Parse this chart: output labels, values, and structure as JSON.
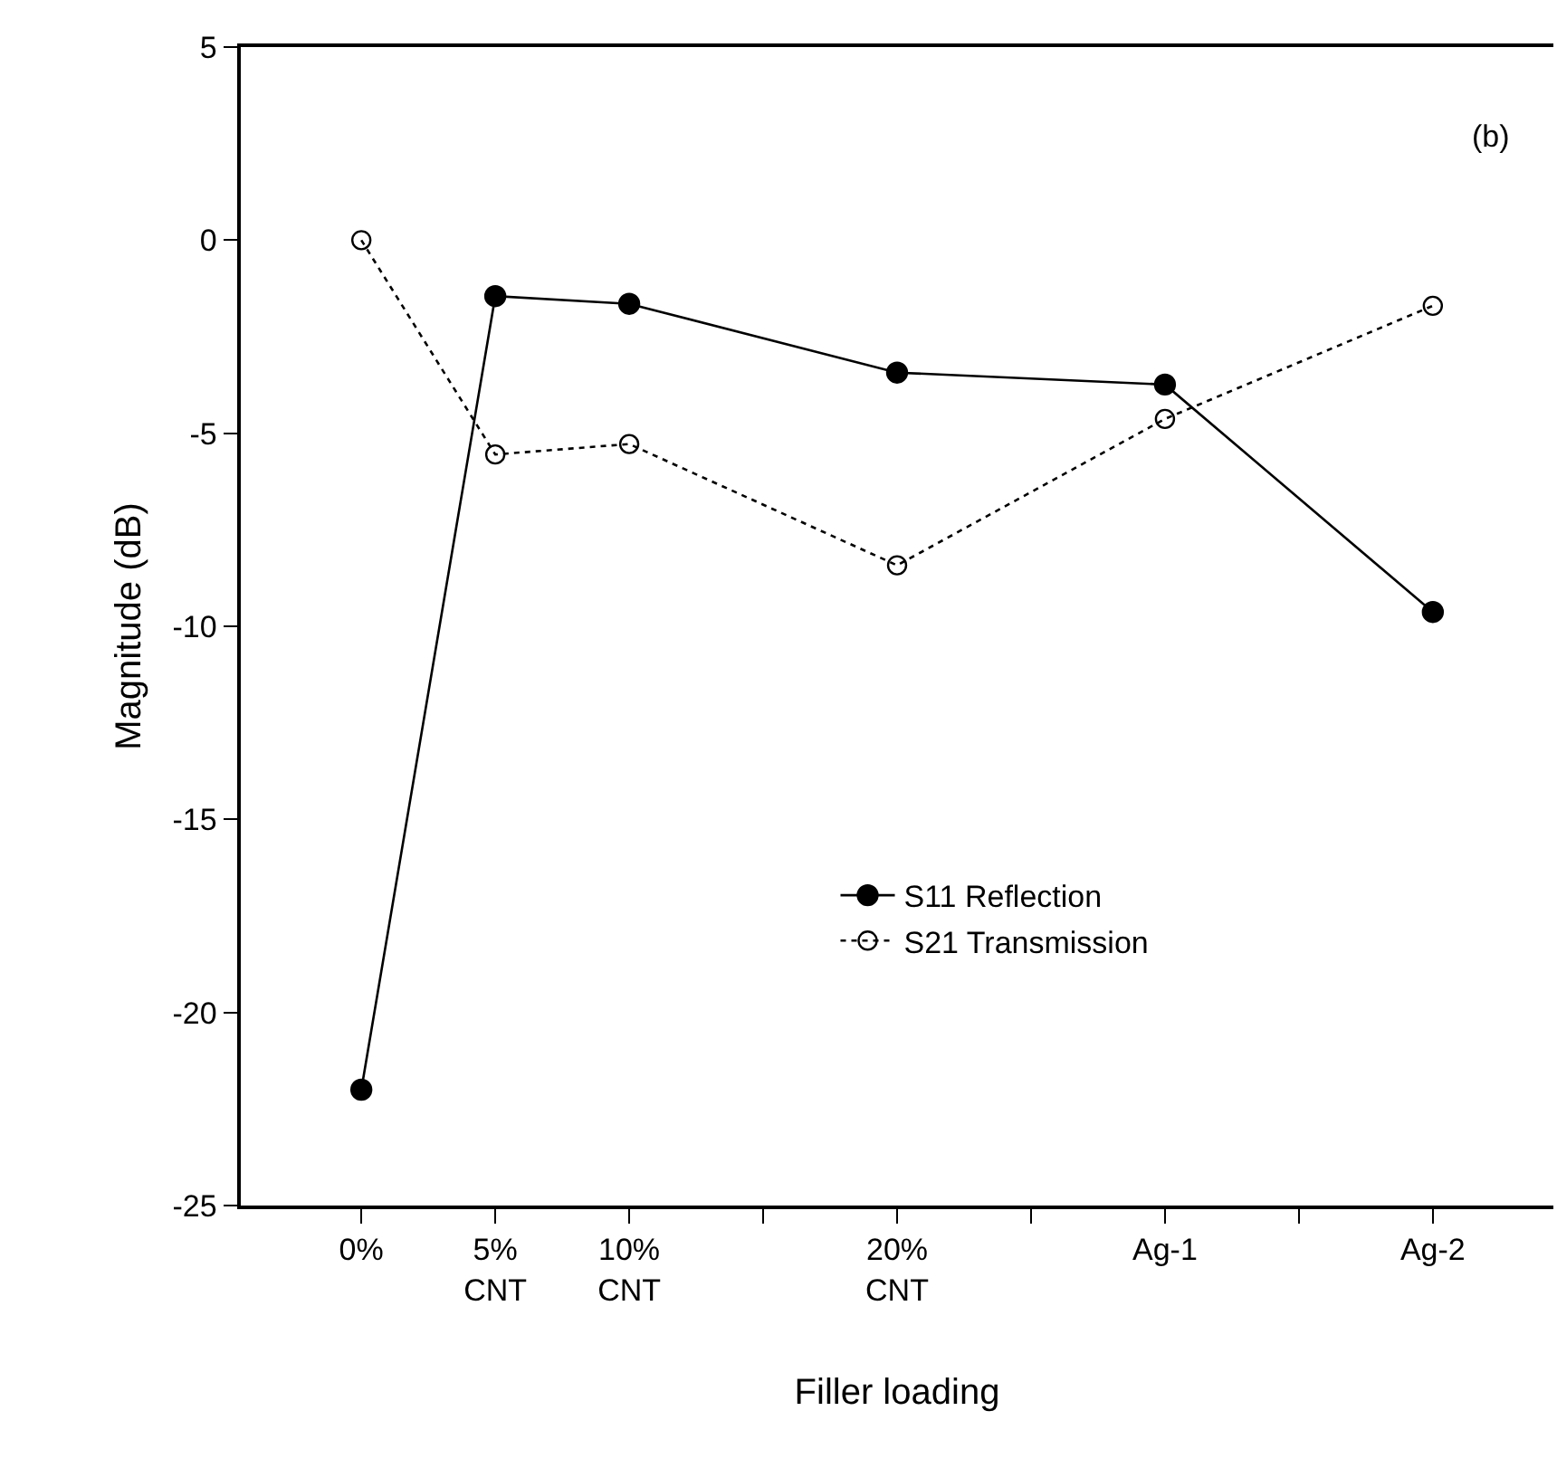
{
  "chart_data": {
    "type": "line",
    "xlabel": "Filler loading",
    "ylabel": "Magnitude (dB)",
    "annotations": [
      "(b)"
    ],
    "categories": [
      "0%",
      "5%\nCNT",
      "10%\nCNT",
      null,
      "20%\nCNT",
      null,
      "Ag-1",
      null,
      "Ag-2"
    ],
    "ylim": [
      -25,
      5
    ],
    "yticks": [
      -25,
      -20,
      -15,
      -10,
      -5,
      0,
      5
    ],
    "series": [
      {
        "name": "S11 Reflection",
        "color": "#000000",
        "values": [
          -22.0,
          -1.45,
          -1.65,
          null,
          -3.43,
          null,
          -3.74,
          null,
          -9.63
        ],
        "marker": "circle",
        "line_style": "solid"
      },
      {
        "name": "S21 Transmission",
        "color": "#000000",
        "values": [
          0.0,
          -5.55,
          -5.28,
          null,
          -8.42,
          null,
          -4.63,
          null,
          -1.7
        ],
        "marker": "circle",
        "line_style": "dotted"
      }
    ],
    "legend": "bottom right"
  }
}
